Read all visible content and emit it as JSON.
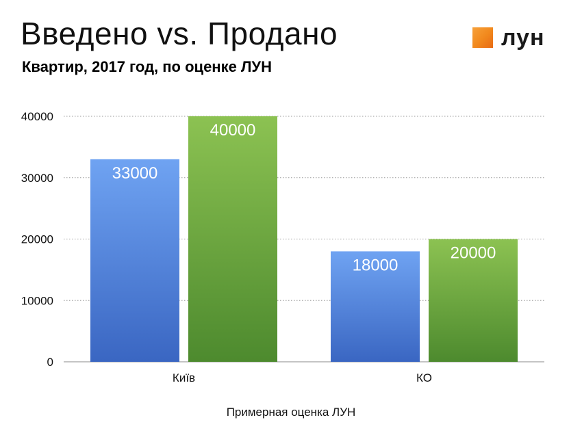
{
  "header": {
    "title": "Введено vs. Продано",
    "subtitle": "Квартир, 2017 год, по оценке ЛУН"
  },
  "logo": {
    "text": "лун",
    "accent_color": "#f28a1e"
  },
  "footnote": "Примерная оценка ЛУН",
  "chart_data": {
    "type": "bar",
    "categories": [
      "Київ",
      "КО"
    ],
    "series": [
      {
        "values": [
          33000,
          18000
        ],
        "color_top": "#6fa3f2",
        "color_bottom": "#3a66c2"
      },
      {
        "values": [
          40000,
          20000
        ],
        "color_top": "#8cc252",
        "color_bottom": "#4d8a2e"
      }
    ],
    "ylim": [
      0,
      40000
    ],
    "yticks": [
      0,
      10000,
      20000,
      30000,
      40000
    ],
    "xlabel": "",
    "ylabel": "",
    "grid": true,
    "data_labels": true
  }
}
